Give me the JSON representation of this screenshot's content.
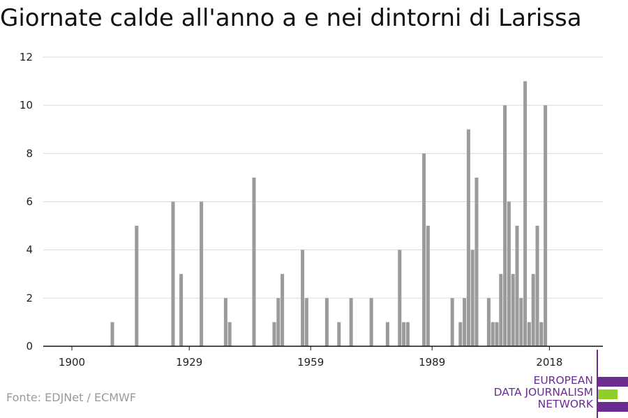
{
  "title": "Giornate calde all'anno a e nei dintorni di Larissa",
  "source": "Fonte: EDJNet / ECMWF",
  "logo": {
    "lines": [
      "EUROPEAN",
      "DATA JOURNALISM",
      "NETWORK"
    ],
    "colors": {
      "purple": "#6a2c91",
      "green": "#8fcf2a"
    }
  },
  "colors": {
    "bar": "#9b9b9b",
    "grid": "#d9d9d9",
    "axis": "#111111"
  },
  "chart_data": {
    "type": "bar",
    "title": "Giornate calde all'anno a e nei dintorni di Larissa",
    "xlabel": "",
    "ylabel": "",
    "xlim": [
      1900,
      2018
    ],
    "ylim": [
      0,
      12
    ],
    "xticks": [
      1900,
      1929,
      1959,
      1989,
      2018
    ],
    "yticks": [
      0,
      2,
      4,
      6,
      8,
      10,
      12
    ],
    "grid": true,
    "x": [
      1910,
      1916,
      1925,
      1927,
      1932,
      1938,
      1939,
      1945,
      1950,
      1951,
      1952,
      1957,
      1958,
      1963,
      1966,
      1969,
      1974,
      1978,
      1981,
      1982,
      1983,
      1987,
      1988,
      1994,
      1996,
      1997,
      1998,
      1999,
      2000,
      2003,
      2004,
      2005,
      2006,
      2007,
      2008,
      2009,
      2010,
      2011,
      2012,
      2013,
      2014,
      2015,
      2016,
      2017
    ],
    "values": [
      1,
      5,
      6,
      3,
      6,
      2,
      1,
      7,
      1,
      2,
      3,
      4,
      2,
      2,
      1,
      2,
      2,
      1,
      4,
      1,
      1,
      8,
      5,
      2,
      1,
      2,
      9,
      4,
      7,
      2,
      1,
      1,
      3,
      10,
      6,
      3,
      5,
      2,
      11,
      1,
      3,
      5,
      1,
      10
    ]
  }
}
